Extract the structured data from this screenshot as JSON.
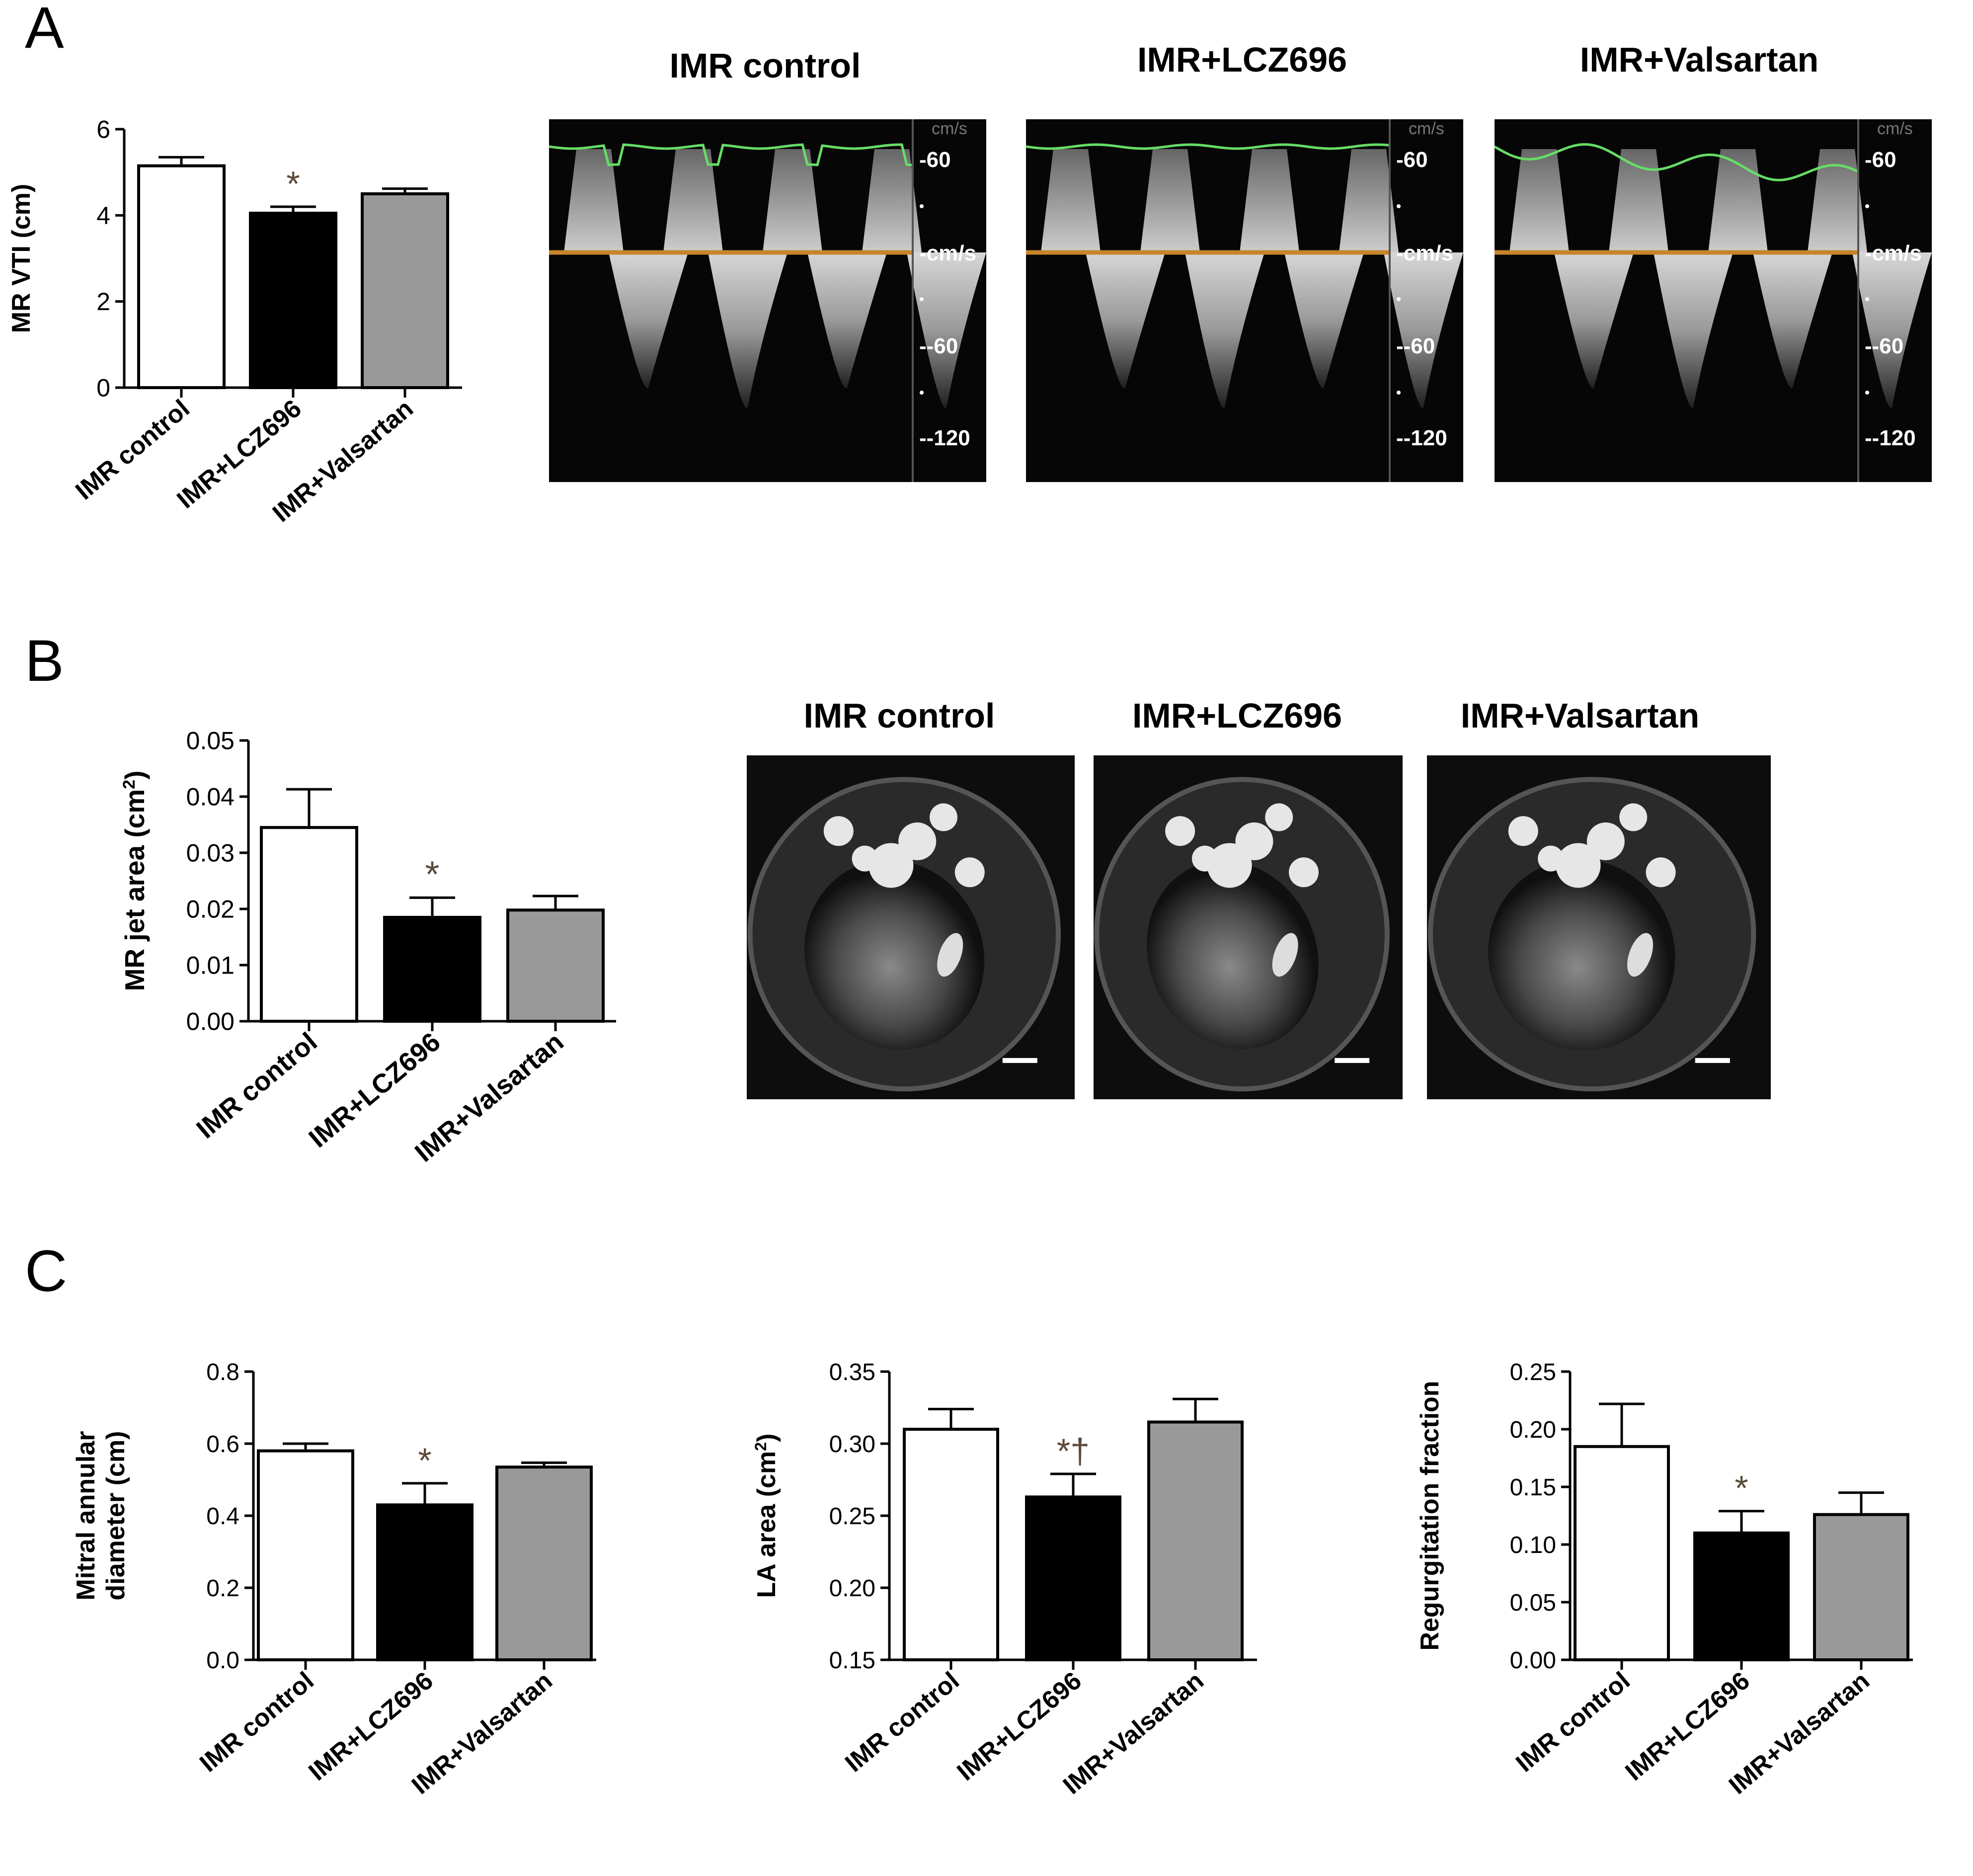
{
  "panels": {
    "a": "A",
    "b": "B",
    "c": "C"
  },
  "groups": [
    "IMR control",
    "IMR+LCZ696",
    "IMR+Valsartan"
  ],
  "colors": {
    "control": "#ffffff",
    "lcz696": "#000000",
    "valsartan": "#999999",
    "mark": "#5a4a3a",
    "trace_green": "#66dd66",
    "baseline_orange": "#c8842a"
  },
  "doppler": {
    "titles": [
      "IMR control",
      "IMR+LCZ696",
      "IMR+Valsartan"
    ],
    "scale_labels": [
      "-60",
      "-cm/s",
      "--60",
      "--120"
    ],
    "top_label_1": "cm/s"
  },
  "mri": {
    "titles": [
      "IMR control",
      "IMR+LCZ696",
      "IMR+Valsartan"
    ]
  },
  "chart_data": [
    {
      "id": "A",
      "type": "bar",
      "categories": [
        "IMR control",
        "IMR+LCZ696",
        "IMR+Valsartan"
      ],
      "values": [
        5.15,
        4.05,
        4.5
      ],
      "errors": [
        0.2,
        0.15,
        0.12
      ],
      "ylabel": "MR VTI (cm)",
      "ylim": [
        0,
        6
      ],
      "yticks": [
        "0",
        "2",
        "4",
        "6"
      ],
      "yticks_values": [
        0,
        2,
        4,
        6
      ],
      "annotations": [
        "",
        "*",
        ""
      ]
    },
    {
      "id": "B",
      "type": "bar",
      "categories": [
        "IMR control",
        "IMR+LCZ696",
        "IMR+Valsartan"
      ],
      "values": [
        0.0345,
        0.0185,
        0.0198
      ],
      "errors": [
        0.0068,
        0.0035,
        0.0025
      ],
      "ylabel": "MR jet area (cm",
      "ylabel_sup": "2",
      "ylabel_end": ")",
      "ylim": [
        0,
        0.05
      ],
      "yticks": [
        "0.00",
        "0.01",
        "0.02",
        "0.03",
        "0.04",
        "0.05"
      ],
      "yticks_values": [
        0,
        0.01,
        0.02,
        0.03,
        0.04,
        0.05
      ],
      "annotations": [
        "",
        "*",
        ""
      ]
    },
    {
      "id": "C1",
      "type": "bar",
      "categories": [
        "IMR control",
        "IMR+LCZ696",
        "IMR+Valsartan"
      ],
      "values": [
        0.58,
        0.43,
        0.535
      ],
      "errors": [
        0.02,
        0.06,
        0.012
      ],
      "ylabel": "Mitral annular",
      "ylabel2": "diameter (cm)",
      "ylim": [
        0,
        0.8
      ],
      "yticks": [
        "0.0",
        "0.2",
        "0.4",
        "0.6",
        "0.8"
      ],
      "yticks_values": [
        0,
        0.2,
        0.4,
        0.6,
        0.8
      ],
      "annotations": [
        "",
        "*",
        ""
      ]
    },
    {
      "id": "C2",
      "type": "bar",
      "categories": [
        "IMR control",
        "IMR+LCZ696",
        "IMR+Valsartan"
      ],
      "values": [
        0.31,
        0.263,
        0.315
      ],
      "errors": [
        0.014,
        0.016,
        0.016
      ],
      "ylabel": "LA area (cm",
      "ylabel_sup": "2",
      "ylabel_end": ")",
      "ylim": [
        0.15,
        0.35
      ],
      "yticks": [
        "0.15",
        "0.20",
        "0.25",
        "0.30",
        "0.35"
      ],
      "yticks_values": [
        0.15,
        0.2,
        0.25,
        0.3,
        0.35
      ],
      "annotations": [
        "",
        "*†",
        ""
      ]
    },
    {
      "id": "C3",
      "type": "bar",
      "categories": [
        "IMR control",
        "IMR+LCZ696",
        "IMR+Valsartan"
      ],
      "values": [
        0.185,
        0.11,
        0.126
      ],
      "errors": [
        0.037,
        0.019,
        0.019
      ],
      "ylabel": "Regurgitation fraction",
      "ylim": [
        0,
        0.25
      ],
      "yticks": [
        "0.00",
        "0.05",
        "0.10",
        "0.15",
        "0.20",
        "0.25"
      ],
      "yticks_values": [
        0,
        0.05,
        0.1,
        0.15,
        0.2,
        0.25
      ],
      "annotations": [
        "",
        "*",
        ""
      ]
    }
  ]
}
